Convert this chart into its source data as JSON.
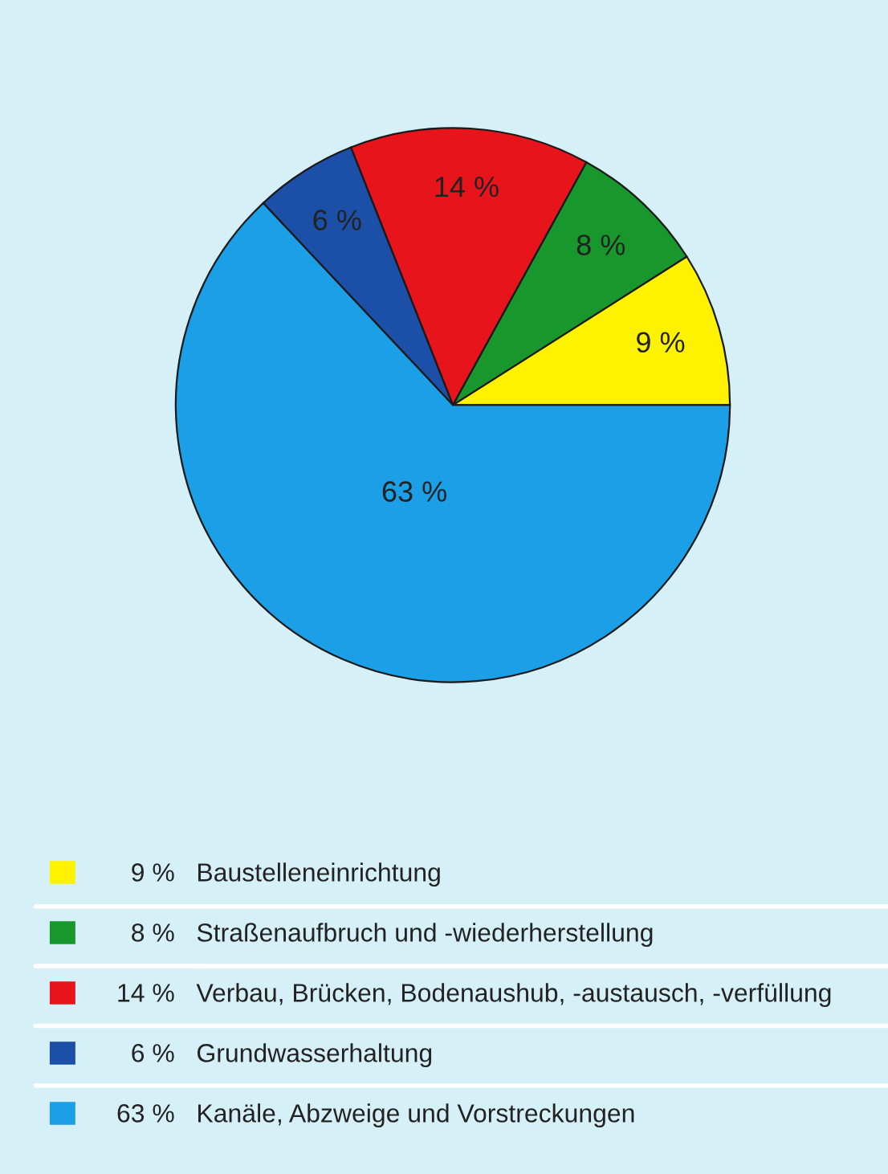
{
  "chart_data": {
    "type": "pie",
    "categories": [
      "Baustelleneinrichtung",
      "Straßenaufbruch und -wiederherstellung",
      "Verbau, Brücken, Bodenaushub, -austausch, -verfüllung",
      "Grundwasserhaltung",
      "Kanäle, Abzweige und Vorstreckungen"
    ],
    "values": [
      9,
      8,
      14,
      6,
      63
    ],
    "value_labels": [
      "9 %",
      "8 %",
      "14 %",
      "6 %",
      "63 %"
    ],
    "colors": [
      "#fff200",
      "#17972c",
      "#e8141c",
      "#1b4fa8",
      "#1b9fe6"
    ],
    "legend": "bottom"
  }
}
